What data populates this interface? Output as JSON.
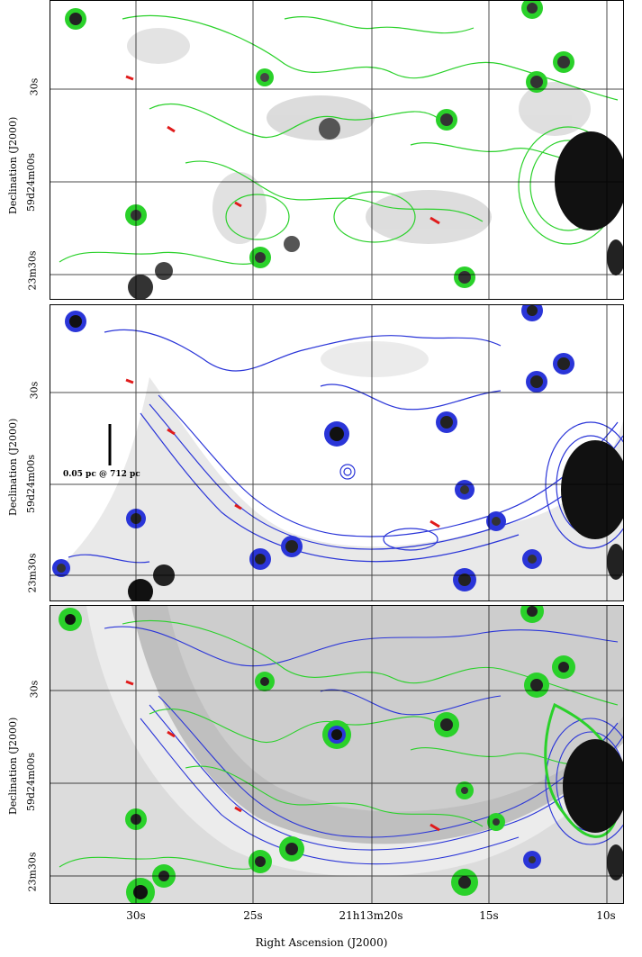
{
  "colors": {
    "contour_set_1": "#2ad12a",
    "contour_set_2": "#2a35d8",
    "grid": "#000000",
    "marker": "#e01b1b"
  },
  "panels": [
    {
      "contours": "green",
      "ylabel": "Declination (J2000)",
      "ytick_30s": "30s",
      "ytick_center": "59d24m00s",
      "ytick_2330": "23m30s"
    },
    {
      "contours": "blue",
      "ylabel": "Declination (J2000)",
      "ytick_30s": "30s",
      "ytick_center": "59d24m00s",
      "ytick_2330": "23m30s",
      "scale_bar_label": "0.05 pc @ 712 pc"
    },
    {
      "contours": "green+blue",
      "ylabel": "Declination (J2000)",
      "ytick_30s": "30s",
      "ytick_center": "59d24m00s",
      "ytick_2330": "23m30s"
    }
  ],
  "x_axis": {
    "ticks": [
      "30s",
      "25s",
      "21h13m20s",
      "15s",
      "10s"
    ],
    "title": "Right Ascension (J2000)"
  }
}
